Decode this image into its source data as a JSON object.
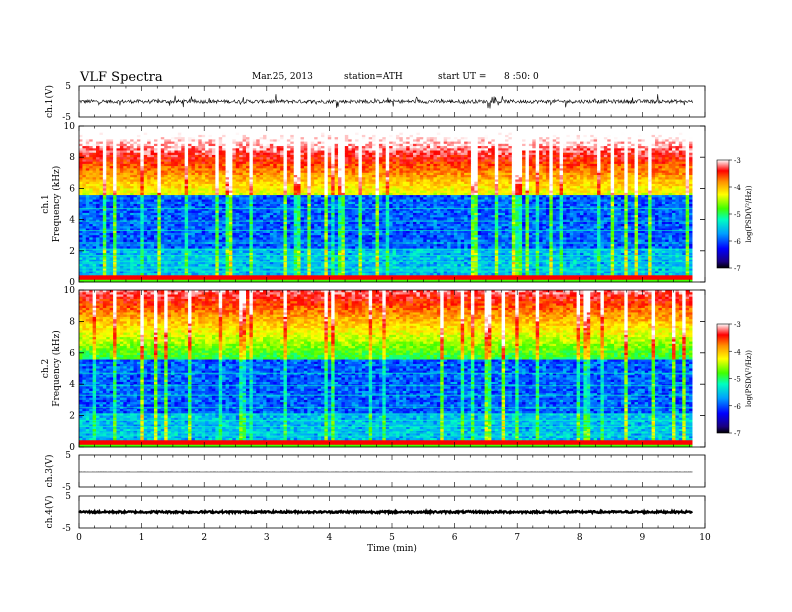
{
  "header": {
    "title": "VLF Spectra",
    "date": "Mar.25, 2013",
    "station": "station=ATH",
    "start_label": "start  UT  =",
    "start_value": "8 :50: 0"
  },
  "chart_data": [
    {
      "type": "line",
      "panel": "ch1-waveform",
      "ylabel": "ch.1(V)",
      "ylim": [
        -5,
        5
      ],
      "y_ticks": [
        "5",
        "-5"
      ]
    },
    {
      "type": "heatmap",
      "panel": "ch1-spectrogram",
      "ylabel": "ch.1",
      "ylabel2": "Frequency (kHz)",
      "ylim": [
        0,
        10
      ],
      "y_ticks": [
        "0",
        "2",
        "4",
        "6",
        "8",
        "10"
      ],
      "colorbar": {
        "label": "log(PSD(V²/Hz))",
        "range": [
          -7,
          -3
        ],
        "ticks": [
          "-3",
          "-4",
          "-5",
          "-6",
          "-7"
        ]
      }
    },
    {
      "type": "heatmap",
      "panel": "ch2-spectrogram",
      "ylabel": "ch.2",
      "ylabel2": "Frequency (kHz)",
      "ylim": [
        0,
        10
      ],
      "y_ticks": [
        "0",
        "2",
        "4",
        "6",
        "8",
        "10"
      ],
      "colorbar": {
        "label": "log(PSD(V²/Hz))",
        "range": [
          -7,
          -3
        ],
        "ticks": [
          "-3",
          "-4",
          "-5",
          "-6",
          "-7"
        ]
      }
    },
    {
      "type": "line",
      "panel": "ch3-waveform",
      "ylabel": "ch.3(V)",
      "ylim": [
        -5,
        5
      ],
      "y_ticks": [
        "5",
        "-5"
      ]
    },
    {
      "type": "line",
      "panel": "ch4-waveform",
      "ylabel": "ch.4(V)",
      "ylim": [
        -5,
        5
      ],
      "y_ticks": [
        "5",
        "-5"
      ]
    }
  ],
  "x_axis": {
    "xlabel": "Time  (min)",
    "xlim": [
      0,
      10
    ],
    "x_ticks": [
      "0",
      "1",
      "2",
      "3",
      "4",
      "5",
      "6",
      "7",
      "8",
      "9",
      "10"
    ],
    "data_end": 9.8
  }
}
